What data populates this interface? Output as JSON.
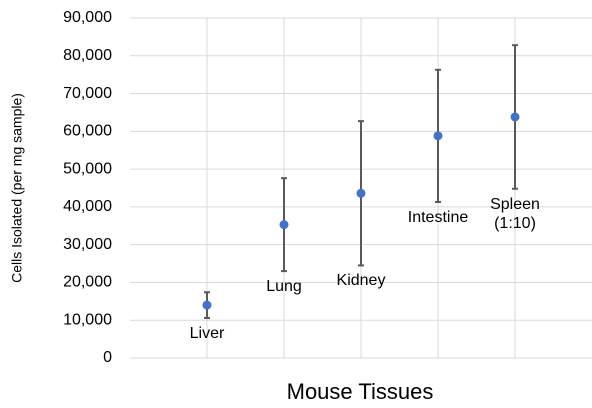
{
  "chart_data": {
    "type": "errorpoint",
    "xlabel": "Mouse Tissues",
    "ylabel": "Cells Isolated (per mg sample)",
    "categories": [
      "Liver",
      "Lung",
      "Kidney",
      "Intestine",
      "Spleen (1:10)"
    ],
    "values": [
      14000,
      35300,
      43600,
      58800,
      63800
    ],
    "errors": [
      3400,
      12300,
      19100,
      17500,
      19000
    ],
    "color": "#4472c4",
    "error_color": "#595959",
    "ylim": [
      0,
      90000
    ],
    "yticks": [
      {
        "value": 0,
        "label": "0"
      },
      {
        "value": 10000,
        "label": "10,000"
      },
      {
        "value": 20000,
        "label": "20,000"
      },
      {
        "value": 30000,
        "label": "30,000"
      },
      {
        "value": 40000,
        "label": "40,000"
      },
      {
        "value": 50000,
        "label": "50,000"
      },
      {
        "value": 60000,
        "label": "60,000"
      },
      {
        "value": 70000,
        "label": "70,000"
      },
      {
        "value": 80000,
        "label": "80,000"
      },
      {
        "value": 90000,
        "label": "90,000"
      }
    ],
    "grid": true
  }
}
